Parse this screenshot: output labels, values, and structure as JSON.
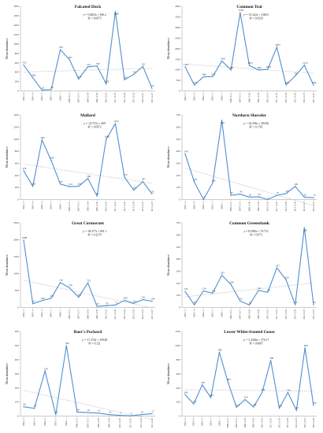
{
  "colors": {
    "series": "#4f8fd0",
    "trend": "#c9c9c9",
    "axis": "#9a9a9a"
  },
  "chart_data": [
    {
      "type": "line",
      "title": "Falcated Duck",
      "ylabel": "Mean abundance",
      "ylim": [
        0,
        1800
      ],
      "yticks": [
        0,
        200,
        400,
        600,
        800,
        1000,
        1200,
        1400,
        1600,
        1800
      ],
      "x": [
        "2002-1-5",
        "2003-1-4",
        "2004-1-3",
        "2005-1-2",
        "2006-1-1",
        "2006-12-31",
        "2007-12-31",
        "2008-12-30",
        "2009-12-30",
        "2010-12-29",
        "2011-12-29",
        "2012-12-28",
        "2013-12-28",
        "2014-12-27",
        "2015-12-27"
      ],
      "xtick_labels": [
        "2002-1-5",
        "2003-1-4",
        "2004-1-3",
        "2005-1-2",
        "2006-1-1",
        "2006-12-31",
        "2007-12-31",
        "2008-12-30",
        "2009-12-30",
        "2010-12-29",
        "2011-12-29",
        "2012-12-28",
        "2013-12-28",
        "2014-12-27",
        "2015-12-27"
      ],
      "values": [
        552,
        282,
        20,
        28,
        876,
        665,
        253,
        514,
        530,
        150,
        1688,
        237,
        352,
        521,
        55
      ],
      "equation": "y = 5.6303x + 396.2",
      "r2": "R² = 0.0075"
    },
    {
      "type": "line",
      "title": "Common Teal",
      "ylabel": "Mean abundance",
      "ylim": [
        0,
        4000
      ],
      "yticks": [
        0,
        500,
        1000,
        1500,
        2000,
        2500,
        3000,
        3500,
        4000
      ],
      "x": [
        "2002-1-5",
        "2003-1-4",
        "2004-1-3",
        "2005-1-2",
        "2006-1-1",
        "2006-12-31",
        "2007-12-31",
        "2008-12-30",
        "2009-12-30",
        "2010-12-29",
        "2011-12-29",
        "2012-12-28",
        "2013-12-28",
        "2014-12-27",
        "2015-12-27"
      ],
      "xtick_labels": [
        "2002-1-5",
        "2003-1-4",
        "2004-1-3",
        "2005-1-2",
        "2006-1-1",
        "2006-12-31",
        "2007-12-31",
        "2008-12-30",
        "2009-12-30",
        "2010-12-29",
        "2011-12-29",
        "2012-12-28",
        "2013-12-28",
        "2014-12-27",
        "2015-12-27"
      ],
      "values": [
        1143,
        279,
        669,
        676,
        1416,
        991,
        3700,
        1203,
        990,
        1019,
        2063,
        284,
        710,
        1213,
        280
      ],
      "value_labels": [
        "1143",
        "279",
        "669",
        "676",
        "1416",
        "991",
        "3700",
        "1203",
        "990",
        "1019",
        "2063",
        "284",
        "710",
        "1213",
        "280"
      ],
      "equation": "y = -31.322x + 1306.5",
      "r2": "R² = 0.0329"
    },
    {
      "type": "line",
      "title": "Mallard",
      "ylabel": "Mean abundance",
      "ylim": [
        0,
        1400
      ],
      "yticks": [
        0,
        200,
        400,
        600,
        800,
        1000,
        1200,
        1400
      ],
      "x": [
        "2002-1-5",
        "2003-1-4",
        "2004-1-3",
        "2005-1-2",
        "2006-1-1",
        "2006-12-31",
        "2007-12-31",
        "2008-12-30",
        "2009-12-30",
        "2010-12-29",
        "2011-12-29",
        "2012-12-28",
        "2013-12-28",
        "2014-12-27",
        "2015-12-27"
      ],
      "xtick_labels": [
        "2002-1-5",
        "2003-1-4",
        "2004-1-3",
        "2005-1-2",
        "2006-1-1",
        "2006-12-31",
        "2007-12-31",
        "2008-12-30",
        "2009-12-30",
        "2010-12-29",
        "2011-12-29",
        "2012-12-28",
        "2013-12-28",
        "2014-12-27",
        "2015-12-27"
      ],
      "values": [
        478,
        220,
        985,
        649,
        257,
        214,
        219,
        348,
        61,
        1000,
        1254,
        370,
        155,
        297,
        92
      ],
      "value_labels": [
        "478",
        "220",
        "985",
        "649",
        "257",
        "214",
        "219",
        "348",
        "61",
        "1000",
        "1254",
        "370",
        "155",
        "297",
        "92"
      ],
      "equation": "y = -22.731x + 609",
      "r2": "R² = 0.0972"
    },
    {
      "type": "line",
      "title": "Northern Shoveler",
      "ylabel": "Mean abundance",
      "ylim": [
        0,
        700
      ],
      "yticks": [
        0,
        100,
        200,
        300,
        400,
        500,
        600,
        700
      ],
      "x": [
        "2002-1-5",
        "2003-1-4",
        "2004-1-3",
        "2005-1-2",
        "2006-1-1",
        "2006-12-31",
        "2007-12-31",
        "2008-12-30",
        "2009-12-30",
        "2010-12-29",
        "2011-12-29",
        "2012-12-28",
        "2013-12-28",
        "2014-12-27",
        "2015-12-27"
      ],
      "xtick_labels": [
        "2002-1-5",
        "2003-1-4",
        "2004-1-3",
        "2005-1-2",
        "2006-1-1",
        "2006-12-31",
        "2007-12-31",
        "2008-12-30",
        "2009-12-30",
        "2010-12-29",
        "2011-12-29",
        "2012-12-28",
        "2013-12-28",
        "2014-12-27",
        "2015-12-27"
      ],
      "values": [
        378,
        145,
        2,
        136,
        656,
        35,
        45,
        20,
        23,
        1,
        35,
        50,
        109,
        20,
        15
      ],
      "value_labels": [
        "378",
        "145",
        "2",
        "136",
        "656",
        "35",
        "45",
        "20",
        "23",
        "1",
        "35",
        "50",
        "109",
        "20",
        "15"
      ],
      "equation": "y = -22.296x + 283.06",
      "r2": "R² = 0.1761"
    },
    {
      "type": "line",
      "title": "Great Cormorant",
      "ylabel": "Mean abundance",
      "ylim": [
        0,
        2500
      ],
      "yticks": [
        0,
        500,
        1000,
        1500,
        2000,
        2500
      ],
      "x": [
        "2002-1-5",
        "2003-1-4",
        "2004-1-3",
        "2005-1-2",
        "2006-1-1",
        "2006-12-31",
        "2007-12-31",
        "2008-12-30",
        "2009-12-30",
        "2010-12-29",
        "2011-12-29",
        "2012-12-28",
        "2013-12-28",
        "2014-12-27",
        "2015-12-27"
      ],
      "xtick_labels": [
        "2002-1-5",
        "2003-1-4",
        "2004-1-3",
        "2005-1-2",
        "2006-1-1",
        "2006-12-31",
        "2007-12-31",
        "2008-12-30",
        "2009-12-30",
        "2010-12-29",
        "2011-12-29",
        "2012-12-28",
        "2013-12-28",
        "2014-12-27",
        "2015-12-27"
      ],
      "values": [
        1988,
        111,
        200,
        272,
        733,
        578,
        301,
        725,
        33,
        50,
        71,
        208,
        121,
        231,
        183
      ],
      "value_labels": [
        "1988",
        "111",
        "200",
        "272",
        "733",
        "578",
        "301",
        "725",
        "33",
        "50",
        "71",
        "208",
        "121",
        "231",
        "183"
      ],
      "equation": "y = -58.277x + 861.1",
      "r2": "R² = 0.2279"
    },
    {
      "type": "line",
      "title": "Common Greenshank",
      "ylabel": "Mean abundance",
      "ylim": [
        0,
        700
      ],
      "yticks": [
        0,
        100,
        200,
        300,
        400,
        500,
        600,
        700
      ],
      "x": [
        "2002-1-5",
        "2003-1-4",
        "2004-1-3",
        "2005-1-2",
        "2006-1-1",
        "2006-12-31",
        "2007-12-31",
        "2008-12-30",
        "2009-12-30",
        "2010-12-29",
        "2011-12-29",
        "2012-12-28",
        "2013-12-28",
        "2014-12-27",
        "2015-12-27"
      ],
      "xtick_labels": [
        "2002-1-5",
        "2003-1-4",
        "2004-1-3",
        "2005-1-2",
        "2006-1-1",
        "2006-12-31",
        "2007-12-31",
        "2008-12-30",
        "2009-12-30",
        "2010-12-29",
        "2011-12-29",
        "2012-12-28",
        "2013-12-28",
        "2014-12-27",
        "2015-12-27"
      ],
      "values": [
        132,
        22,
        136,
        118,
        267,
        189,
        53,
        20,
        141,
        125,
        327,
        229,
        22,
        659,
        22
      ],
      "value_labels": [
        "132",
        "22",
        "136",
        "118",
        "267",
        "189",
        "53",
        "20",
        "141",
        "125",
        "327",
        "229",
        "22",
        "659",
        "22"
      ],
      "equation": "y = 8.1982x + 79.712",
      "r2": "R² = 0.073"
    },
    {
      "type": "line",
      "title": "Baer's Pochard",
      "ylabel": "Mean abundance",
      "ylim": [
        0,
        600
      ],
      "yticks": [
        0,
        100,
        200,
        300,
        400,
        500,
        600
      ],
      "x": [
        "2002-1-5",
        "2003-1-4",
        "2004-1-3",
        "2005-1-2",
        "2006-1-1",
        "2006-12-31",
        "2007-12-31",
        "2008-12-30",
        "2009-12-30",
        "2010-12-29",
        "2011-12-29",
        "2012-12-28",
        "2013-12-28"
      ],
      "xtick_labels": [
        "2002-1-5",
        "2003-1-4",
        "2004-1-3",
        "2005-1-2",
        "2006-1-1",
        "2006-12-31",
        "2007-12-31",
        "2008-12-30",
        "2009-12-30",
        "2010-12-29",
        "2011-12-29",
        "2012-12-28",
        "2013-12-28"
      ],
      "values": [
        66,
        55,
        319,
        10,
        500,
        28,
        25,
        21,
        10,
        5,
        2,
        10,
        17
      ],
      "value_labels": [
        "66",
        "55",
        "319",
        "10",
        "500",
        "28",
        "25",
        "21",
        "10",
        "5",
        "2",
        "10",
        "17"
      ],
      "equation": "y = -17.276x + 199.48",
      "r2": "R² = 0.121"
    },
    {
      "type": "line",
      "title": "Lesser White-fronted Goose",
      "ylabel": "Mean abundance",
      "ylim": [
        0,
        1200
      ],
      "yticks": [
        0,
        200,
        400,
        600,
        800,
        1000,
        1200
      ],
      "x": [
        "2002-1-5",
        "2003-1-4",
        "2004-1-3",
        "2005-1-2",
        "2006-1-1",
        "2006-12-31",
        "2007-12-31",
        "2008-12-30",
        "2009-12-30",
        "2010-12-29",
        "2011-12-29",
        "2012-12-28",
        "2013-12-28",
        "2014-12-27",
        "2015-12-27",
        "2016-12-26"
      ],
      "xtick_labels": [
        "2002-1-5",
        "2003-1-4",
        "2004-1-3",
        "2005-1-2",
        "2006-1-1",
        "2006-12-31",
        "2007-12-31",
        "2008-12-30",
        "2009-12-30",
        "2010-12-29",
        "2011-12-29",
        "2012-12-28",
        "2013-12-28",
        "2014-12-27",
        "2015-12-27",
        "2016-12-26"
      ],
      "values": [
        304,
        172,
        443,
        263,
        906,
        483,
        124,
        234,
        128,
        339,
        788,
        113,
        333,
        82,
        968,
        150
      ],
      "value_labels": [
        "304",
        "172",
        "443",
        "263",
        "906",
        "483",
        "124",
        "234",
        "128",
        "339",
        "788",
        "113",
        "333",
        "82",
        "968",
        "150"
      ],
      "equation": "y = -1.4366x + 376.17",
      "r2": "R² = 0.0007"
    }
  ]
}
